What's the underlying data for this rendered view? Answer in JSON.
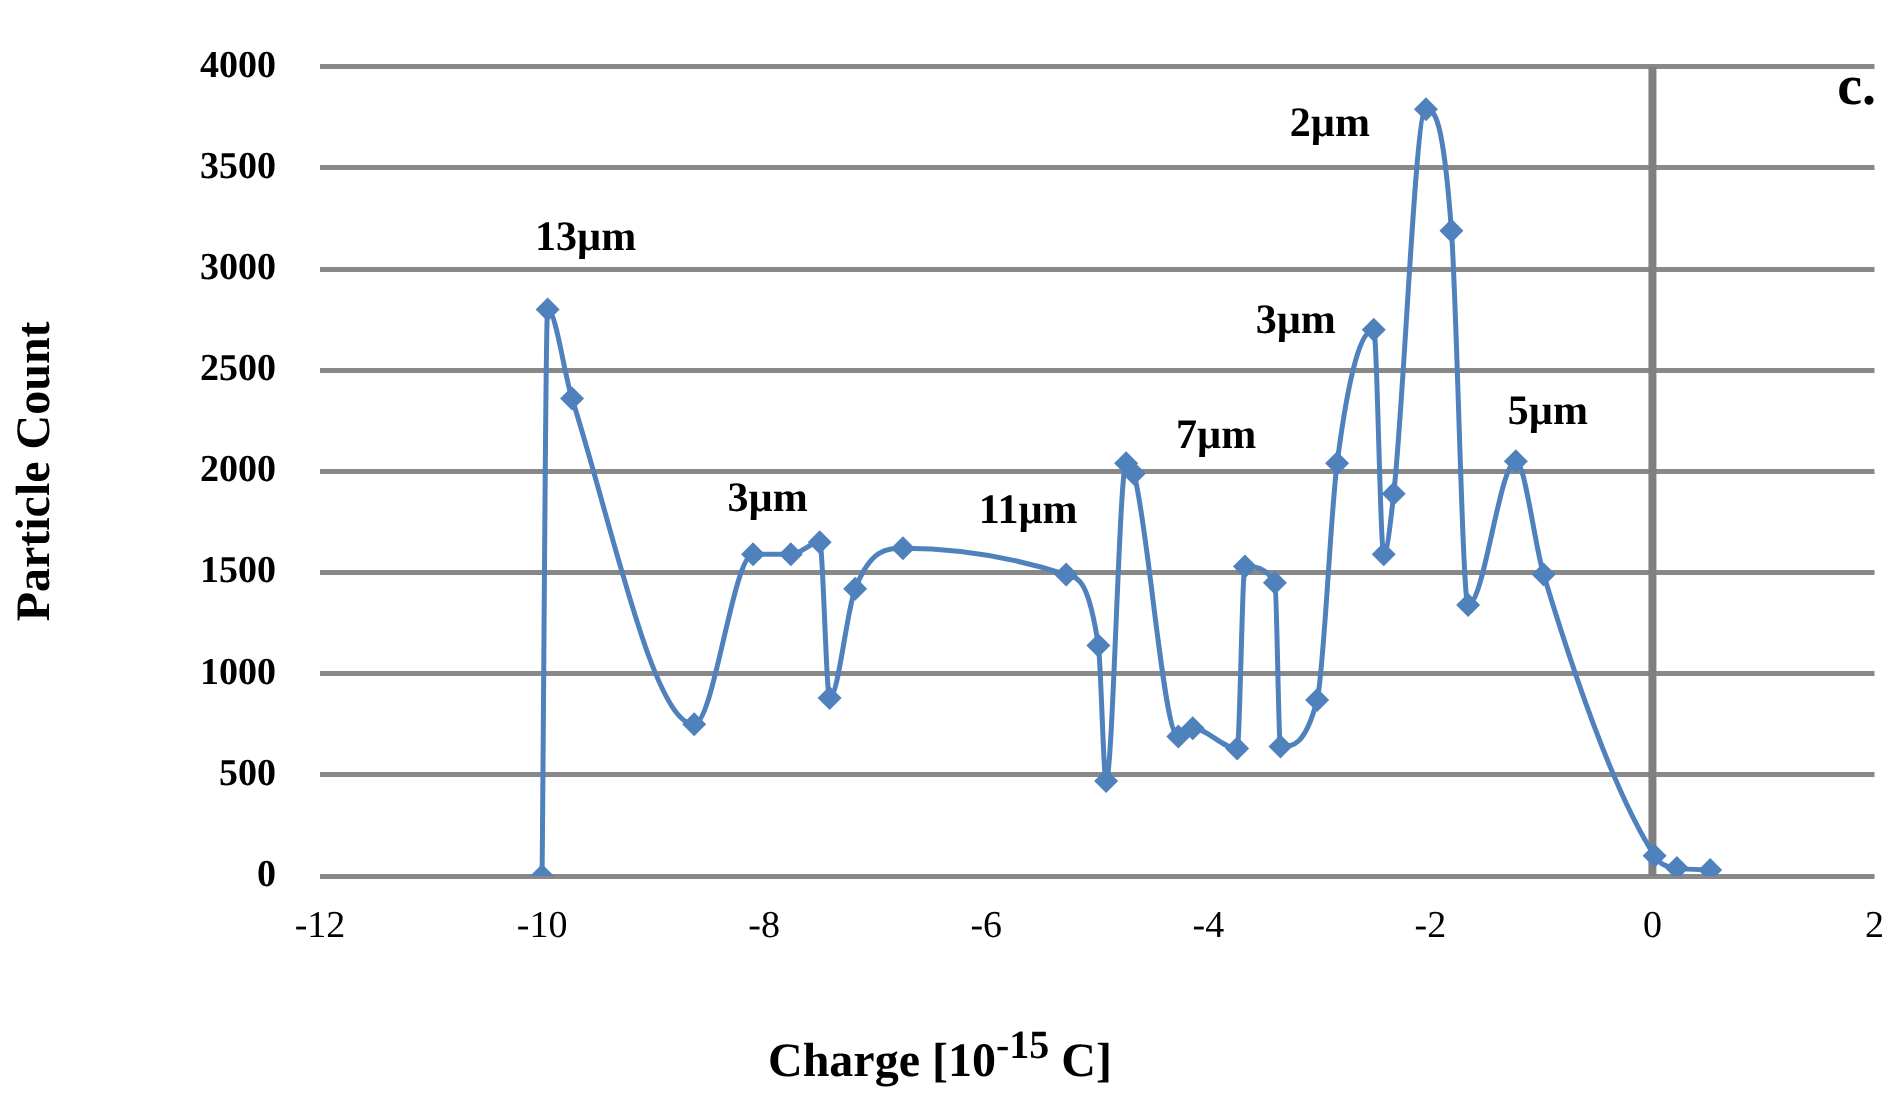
{
  "chart_data": {
    "type": "line",
    "xlabel": "Charge [10$^{-15}$ C]",
    "ylabel": "Particle Count",
    "x": [
      -10,
      -9.95,
      -9.73,
      -8.63,
      -8.1,
      -7.76,
      -7.5,
      -7.41,
      -7.18,
      -6.75,
      -5.28,
      -4.99,
      -4.92,
      -4.74,
      -4.67,
      -4.27,
      -4.14,
      -3.74,
      -3.67,
      -3.4,
      -3.35,
      -3.02,
      -2.84,
      -2.51,
      -2.42,
      -2.33,
      -2.04,
      -1.81,
      -1.66,
      -1.23,
      -0.98,
      0.02,
      0.22,
      0.52
    ],
    "series": [
      {
        "color": "#4f81bd",
        "values": [
          0,
          2800,
          2360,
          750,
          1590,
          1590,
          1650,
          880,
          1420,
          1620,
          1490,
          1140,
          470,
          2040,
          1990,
          690,
          730,
          630,
          1530,
          1450,
          640,
          870,
          2040,
          2700,
          1590,
          1890,
          3790,
          3190,
          1340,
          2050,
          1490,
          100,
          40,
          30
        ]
      }
    ],
    "xlim": [
      -12,
      2
    ],
    "xticks": [
      -12,
      -10,
      -8,
      -6,
      -4,
      -2,
      0,
      2
    ],
    "ylim": [
      0,
      4000
    ],
    "yticks": [
      0,
      500,
      1000,
      1500,
      2000,
      2500,
      3000,
      3500,
      4000
    ],
    "grid": "y",
    "legend": false,
    "marker": "diamond",
    "line_style": "solid",
    "ref_lines": [
      {
        "axis": "x",
        "value": 0,
        "color": "#808080"
      }
    ],
    "annotations": [
      {
        "text": "13µm",
        "x": -9.95,
        "y": 2800
      },
      {
        "text": "3µm",
        "x": -7.5,
        "y": 1650
      },
      {
        "text": "11µm",
        "x": -5.28,
        "y": 1490
      },
      {
        "text": "7µm",
        "x": -4.74,
        "y": 2040
      },
      {
        "text": "3µm",
        "x": -2.51,
        "y": 2700
      },
      {
        "text": "2µm",
        "x": -2.04,
        "y": 3790
      },
      {
        "text": "5µm",
        "x": -1.23,
        "y": 2050
      },
      "c."
    ]
  }
}
